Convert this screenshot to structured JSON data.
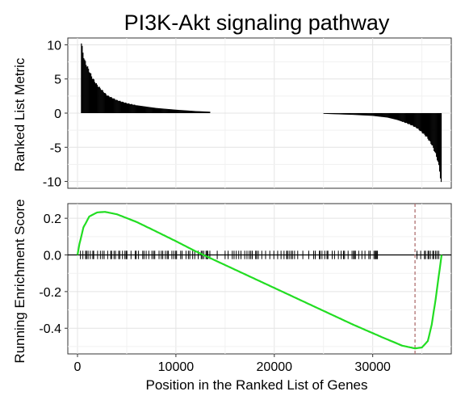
{
  "chart_data": {
    "type": "line",
    "title": "PI3K-Akt signaling pathway",
    "xlabel": "Position in the Ranked List of Genes",
    "xlim": [
      0,
      37000
    ],
    "x_ticks": [
      "0",
      "10000",
      "20000",
      "30000"
    ],
    "panels": [
      {
        "name": "ranked-list",
        "chart_type": "bar",
        "ylabel": "Ranked List Metric",
        "ylim": [
          -11,
          11
        ],
        "y_ticks": [
          "10",
          "5",
          "0",
          "-5",
          "-10"
        ],
        "grid": true,
        "color": "#000000",
        "profile": {
          "x": [
            400,
            700,
            1000,
            1500,
            2000,
            3000,
            4000,
            5000,
            6000,
            8000,
            10000,
            12000,
            13500,
            25000,
            28000,
            30000,
            31500,
            32500,
            33500,
            34000,
            34500,
            35000,
            35500,
            36000,
            36300,
            36600,
            36800,
            37000
          ],
          "y": [
            10.2,
            7.8,
            6.8,
            5.2,
            4.1,
            2.6,
            1.9,
            1.45,
            1.15,
            0.75,
            0.5,
            0.3,
            0.2,
            -0.1,
            -0.25,
            -0.4,
            -0.65,
            -1.0,
            -1.5,
            -1.8,
            -2.2,
            -2.8,
            -3.5,
            -4.6,
            -5.6,
            -6.9,
            -8.4,
            -10.8
          ]
        }
      },
      {
        "name": "running-enrichment",
        "chart_type": "line",
        "ylabel": "Running Enrichment Score",
        "ylim": [
          -0.54,
          0.28
        ],
        "y_ticks": [
          "0.2",
          "0.0",
          "-0.2",
          "-0.4"
        ],
        "grid": true,
        "series": [
          {
            "color": "#22dd22",
            "x": [
              0,
              200,
              600,
              1200,
              2000,
              2800,
              4000,
              6000,
              8000,
              10000,
              12000,
              14000,
              16000,
              20000,
              24000,
              28000,
              31000,
              33000,
              34300,
              35000,
              35600,
              36000,
              36400,
              36700,
              37000
            ],
            "y": [
              0.0,
              0.06,
              0.15,
              0.21,
              0.232,
              0.235,
              0.222,
              0.18,
              0.128,
              0.075,
              0.02,
              -0.03,
              -0.08,
              -0.18,
              -0.28,
              -0.38,
              -0.45,
              -0.495,
              -0.51,
              -0.505,
              -0.47,
              -0.38,
              -0.24,
              -0.12,
              0.0
            ]
          }
        ],
        "zero_line": 0.0,
        "peak_marker_x": 34300,
        "peak_marker_color": "#b07070"
      }
    ],
    "gene_hit_ranges": [
      [
        300,
        13500
      ],
      [
        15000,
        22500
      ],
      [
        24000,
        30500
      ],
      [
        34500,
        37000
      ]
    ]
  }
}
